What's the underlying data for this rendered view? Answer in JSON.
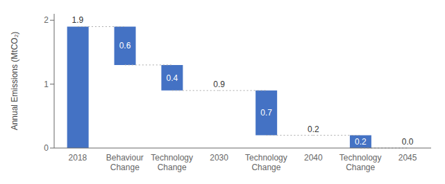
{
  "chart_data": {
    "type": "waterfall",
    "categories": [
      "2018",
      "Behaviour\nChange",
      "Technology\nChange",
      "2030",
      "Technology\nChange",
      "2040",
      "Technology\nChange",
      "2045"
    ],
    "bottoms": [
      0,
      1.3,
      0.9,
      null,
      0.2,
      null,
      0,
      null
    ],
    "values": [
      1.9,
      0.6,
      0.4,
      0.9,
      0.7,
      0.2,
      0.2,
      0
    ],
    "value_labels": [
      "1.9",
      "0.6",
      "0.4",
      "0.9",
      "0.7",
      "0.2",
      "0.2",
      "0.0"
    ],
    "connector_levels": [
      1.9,
      1.3,
      0.9,
      0.9,
      0.2,
      0.2,
      0
    ],
    "ylabel": "Annual Emissions (MtCO₂)",
    "ylim": [
      0,
      2.1
    ],
    "yticks": [
      0,
      1,
      2
    ],
    "color": "#4472C4",
    "data_labels": true,
    "grid": false
  }
}
